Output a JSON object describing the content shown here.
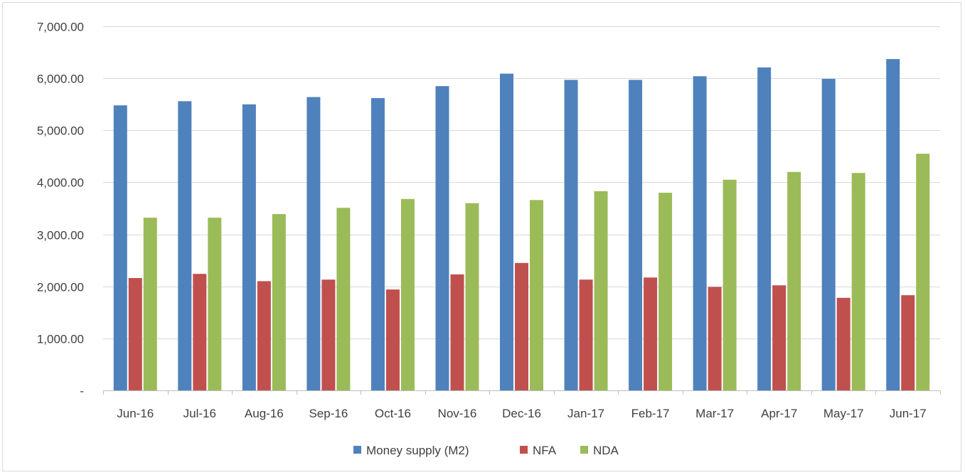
{
  "chart_data": {
    "type": "bar",
    "categories": [
      "Jun-16",
      "Jul-16",
      "Aug-16",
      "Sep-16",
      "Oct-16",
      "Nov-16",
      "Dec-16",
      "Jan-17",
      "Feb-17",
      "Mar-17",
      "Apr-17",
      "May-17",
      "Jun-17"
    ],
    "series": [
      {
        "name": "Money supply (M2)",
        "color": "#4f81bd",
        "values": [
          5480,
          5560,
          5500,
          5640,
          5620,
          5850,
          6090,
          5970,
          5970,
          6040,
          6210,
          5990,
          6370
        ]
      },
      {
        "name": "NFA",
        "color": "#c0504d",
        "values": [
          2160,
          2240,
          2100,
          2130,
          1940,
          2230,
          2450,
          2130,
          2170,
          1990,
          2020,
          1780,
          1830
        ]
      },
      {
        "name": "NDA",
        "color": "#9bbb59",
        "values": [
          3320,
          3320,
          3390,
          3510,
          3680,
          3600,
          3660,
          3830,
          3800,
          4050,
          4200,
          4180,
          4550
        ]
      }
    ],
    "ylim": [
      0,
      7000
    ],
    "yticks": [
      {
        "value": 0,
        "label": "-"
      },
      {
        "value": 1000,
        "label": "1,000.00"
      },
      {
        "value": 2000,
        "label": "2,000.00"
      },
      {
        "value": 3000,
        "label": "3,000.00"
      },
      {
        "value": 4000,
        "label": "4,000.00"
      },
      {
        "value": 5000,
        "label": "5,000.00"
      },
      {
        "value": 6000,
        "label": "6,000.00"
      },
      {
        "value": 7000,
        "label": "7,000.00"
      }
    ],
    "grid": true,
    "legend_position": "bottom-center",
    "title": "",
    "xlabel": "",
    "ylabel": ""
  }
}
